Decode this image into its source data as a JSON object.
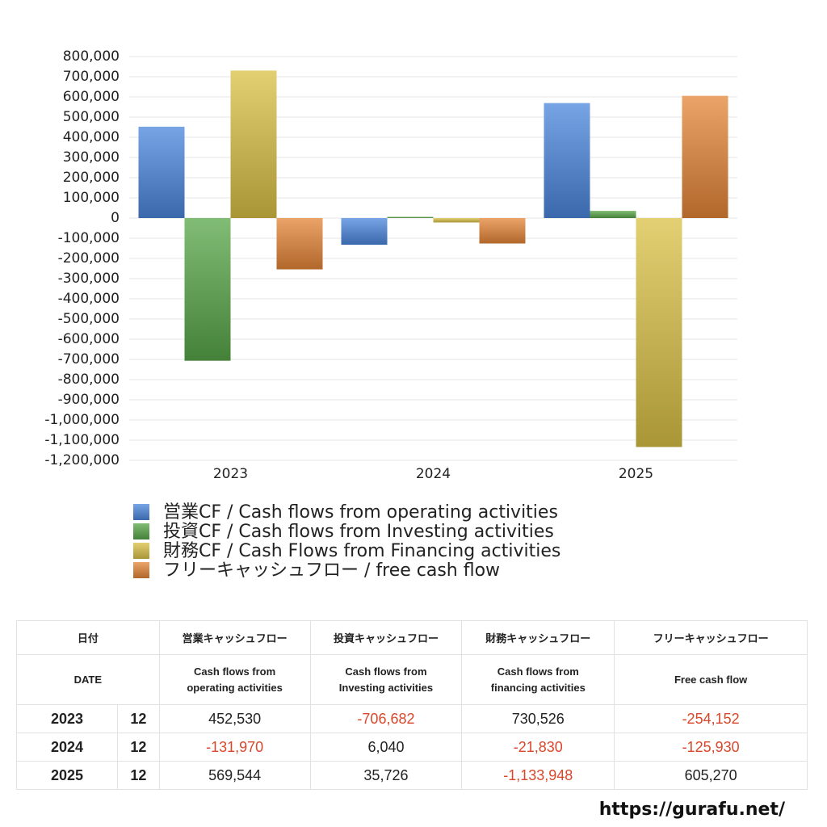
{
  "chart_data": {
    "type": "bar",
    "categories": [
      "2023",
      "2024",
      "2025"
    ],
    "series": [
      {
        "name": "営業CF / Cash flows from operating activities",
        "color": "#4a86dc",
        "values": [
          452530,
          -131970,
          569544
        ]
      },
      {
        "name": "投資CF / Cash flows from Investing activities",
        "color": "#58a648",
        "values": [
          -706682,
          6040,
          35726
        ]
      },
      {
        "name": "財務CF / Cash Flows from Financing activities",
        "color": "#d9c044",
        "values": [
          730526,
          -21830,
          -1133948
        ]
      },
      {
        "name": "フリーキャッシュフロー / free cash flow",
        "color": "#e48536",
        "values": [
          -254152,
          -125930,
          605270
        ]
      }
    ],
    "ylim": [
      -1200000,
      800000
    ],
    "yticks": [
      {
        "value": 800000,
        "label": "800,000"
      },
      {
        "value": 700000,
        "label": "700,000"
      },
      {
        "value": 600000,
        "label": "600,000"
      },
      {
        "value": 500000,
        "label": "500,000"
      },
      {
        "value": 400000,
        "label": "400,000"
      },
      {
        "value": 300000,
        "label": "300,000"
      },
      {
        "value": 200000,
        "label": "200,000"
      },
      {
        "value": 100000,
        "label": "100,000"
      },
      0,
      {
        "value": -100000,
        "label": "-100,000"
      },
      {
        "value": -200000,
        "label": "-200,000"
      },
      {
        "value": -300000,
        "label": "-300,000"
      },
      {
        "value": -400000,
        "label": "-400,000"
      },
      {
        "value": -500000,
        "label": "-500,000"
      },
      {
        "value": -600000,
        "label": "-600,000"
      },
      {
        "value": -700000,
        "label": "-700,000"
      },
      {
        "value": -800000,
        "label": "-800,000"
      },
      {
        "value": -900000,
        "label": "-900,000"
      },
      {
        "value": -1000000,
        "label": "-1,000,000"
      },
      {
        "value": -1100000,
        "label": "-1,100,000"
      },
      {
        "value": -1200000,
        "label": "-1,200,000"
      }
    ],
    "grid": true,
    "legend": "bottom"
  },
  "table": {
    "header": [
      "日付",
      "営業キャッシュフロー",
      "投資キャッシュフロー",
      "財務キャッシュフロー",
      "フリーキャッシュフロー"
    ],
    "subheader": [
      "DATE",
      "Cash flows from operating activities",
      "Cash flows from Investing activities",
      "Cash flows from financing activities",
      "Free cash flow"
    ],
    "rows": [
      [
        "2023",
        "12",
        "452,530",
        "-706,682",
        "730,526",
        "-254,152"
      ],
      [
        "2024",
        "12",
        "-131,970",
        "6,040",
        "-21,830",
        "-125,930"
      ],
      [
        "2025",
        "12",
        "569,544",
        "35,726",
        "-1,133,948",
        "605,270"
      ]
    ]
  },
  "footer": "https://gurafu.net/"
}
